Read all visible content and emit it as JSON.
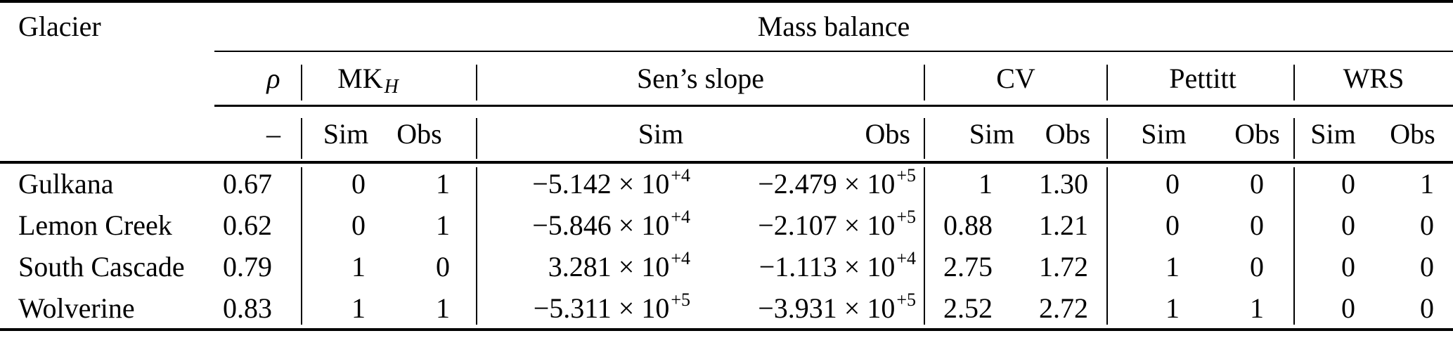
{
  "table": {
    "corner_header": "Glacier",
    "span_header": "Mass balance",
    "groups": {
      "rho": {
        "label": "ρ",
        "sub": "–"
      },
      "mk": {
        "label_base": "MK",
        "label_sub": "H",
        "sim": "Sim",
        "obs": "Obs"
      },
      "sen": {
        "label": "Sen’s slope",
        "sim": "Sim",
        "obs": "Obs"
      },
      "cv": {
        "label": "CV",
        "sim": "Sim",
        "obs": "Obs"
      },
      "pettitt": {
        "label": "Pettitt",
        "sim": "Sim",
        "obs": "Obs"
      },
      "wrs": {
        "label": "WRS",
        "sim": "Sim",
        "obs": "Obs"
      }
    },
    "rows": [
      {
        "glacier": "Gulkana",
        "rho": "0.67",
        "mk_sim": "0",
        "mk_obs": "1",
        "sen_sim_mantissa": "−5.142 × 10",
        "sen_sim_exp": "+4",
        "sen_obs_mantissa": "−2.479 × 10",
        "sen_obs_exp": "+5",
        "cv_sim": "1",
        "cv_obs": "1.30",
        "pettitt_sim": "0",
        "pettitt_obs": "0",
        "wrs_sim": "0",
        "wrs_obs": "1"
      },
      {
        "glacier": "Lemon Creek",
        "rho": "0.62",
        "mk_sim": "0",
        "mk_obs": "1",
        "sen_sim_mantissa": "−5.846 × 10",
        "sen_sim_exp": "+4",
        "sen_obs_mantissa": "−2.107 × 10",
        "sen_obs_exp": "+5",
        "cv_sim": "0.88",
        "cv_obs": "1.21",
        "pettitt_sim": "0",
        "pettitt_obs": "0",
        "wrs_sim": "0",
        "wrs_obs": "0"
      },
      {
        "glacier": "South Cascade",
        "rho": "0.79",
        "mk_sim": "1",
        "mk_obs": "0",
        "sen_sim_mantissa": "3.281 × 10",
        "sen_sim_exp": "+4",
        "sen_obs_mantissa": "−1.113 × 10",
        "sen_obs_exp": "+4",
        "cv_sim": "2.75",
        "cv_obs": "1.72",
        "pettitt_sim": "1",
        "pettitt_obs": "0",
        "wrs_sim": "0",
        "wrs_obs": "0"
      },
      {
        "glacier": "Wolverine",
        "rho": "0.83",
        "mk_sim": "1",
        "mk_obs": "1",
        "sen_sim_mantissa": "−5.311 × 10",
        "sen_sim_exp": "+5",
        "sen_obs_mantissa": "−3.931 × 10",
        "sen_obs_exp": "+5",
        "cv_sim": "2.52",
        "cv_obs": "2.72",
        "pettitt_sim": "1",
        "pettitt_obs": "1",
        "wrs_sim": "0",
        "wrs_obs": "0"
      }
    ],
    "colors": {
      "text": "#000000",
      "background": "#ffffff",
      "rule": "#000000"
    }
  }
}
